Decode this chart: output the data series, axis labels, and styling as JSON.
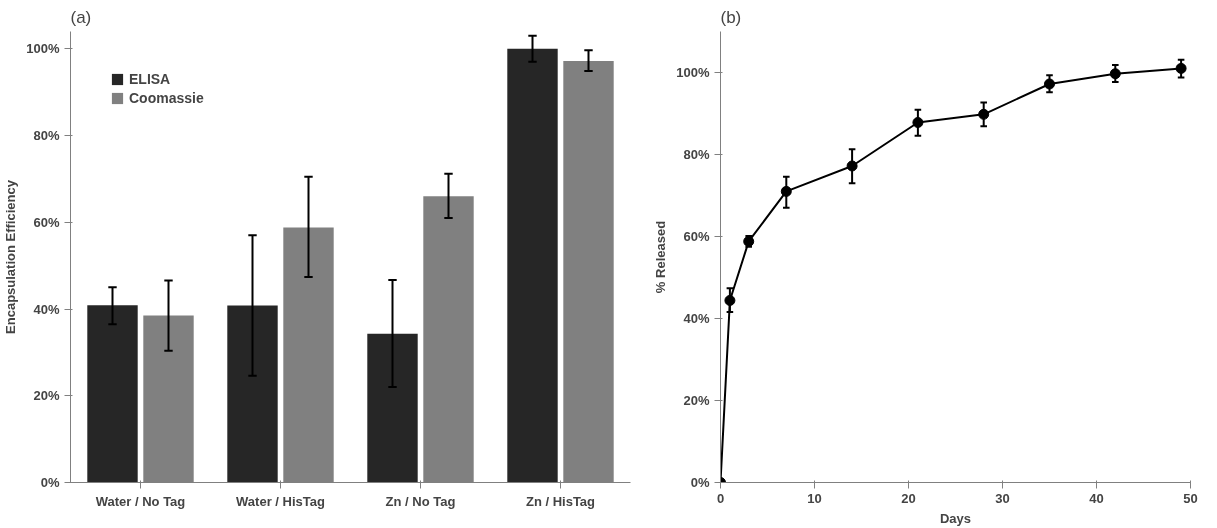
{
  "chart_data": [
    {
      "type": "bar",
      "title": "(a)",
      "ylabel": "Encapsulation Efficiency",
      "categories": [
        "Water / No Tag",
        "Water / HisTag",
        "Zn / No Tag",
        "Zn / HisTag"
      ],
      "series": [
        {
          "name": "ELISA",
          "color": "#262626",
          "values": [
            40.9,
            40.8,
            34.3,
            100
          ],
          "errors": [
            [
              36.5,
              45.0
            ],
            [
              24.6,
              57.0
            ],
            [
              22.0,
              46.7
            ],
            [
              97.0,
              103.0
            ]
          ]
        },
        {
          "name": "Coomassie",
          "color": "#808080",
          "values": [
            38.5,
            58.8,
            66.0,
            97.2
          ],
          "errors": [
            [
              30.4,
              46.6
            ],
            [
              47.4,
              70.5
            ],
            [
              61.0,
              71.2
            ],
            [
              94.9,
              99.7
            ]
          ]
        }
      ],
      "ylim": [
        0,
        104
      ],
      "yticks": [
        {
          "value": 0,
          "label": "0%"
        },
        {
          "value": 20,
          "label": "20%"
        },
        {
          "value": 40,
          "label": "40%"
        },
        {
          "value": 60,
          "label": "60%"
        },
        {
          "value": 80,
          "label": "80%"
        },
        {
          "value": 100,
          "label": "100%"
        }
      ],
      "grid": false,
      "legend": "top left"
    },
    {
      "type": "line",
      "title": "(b)",
      "xlabel": "Days",
      "ylabel": "% Released",
      "x": [
        0,
        1,
        3,
        7,
        14,
        21,
        28,
        35,
        42,
        49
      ],
      "series": [
        {
          "color": "#000000",
          "values": [
            0,
            44.4,
            58.8,
            71.0,
            77.2,
            87.8,
            89.8,
            97.2,
            99.7,
            101.0
          ],
          "errors": [
            null,
            [
              41.6,
              47.4
            ],
            [
              57.5,
              60.1
            ],
            [
              67.0,
              74.6
            ],
            [
              73.0,
              81.3
            ],
            [
              84.6,
              90.9
            ],
            [
              86.9,
              92.7
            ],
            [
              95.2,
              99.3
            ],
            [
              97.7,
              101.8
            ],
            [
              98.8,
              103.1
            ]
          ]
        }
      ],
      "xlim": [
        0,
        50
      ],
      "xticks": [
        0,
        10,
        20,
        30,
        40,
        50
      ],
      "ylim": [
        0,
        110
      ],
      "yticks": [
        {
          "value": 0,
          "label": "0%"
        },
        {
          "value": 20,
          "label": "20%"
        },
        {
          "value": 40,
          "label": "40%"
        },
        {
          "value": 60,
          "label": "60%"
        },
        {
          "value": 80,
          "label": "80%"
        },
        {
          "value": 100,
          "label": "100%"
        }
      ],
      "grid": false,
      "marker": "circle",
      "line_style": "solid"
    }
  ]
}
